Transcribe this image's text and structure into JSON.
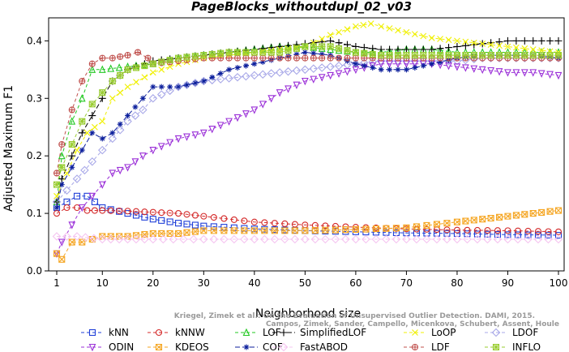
{
  "chart_data": {
    "type": "line",
    "title": "PageBlocks_withoutdupl_02_v03",
    "xlabel": "Neighborhood size",
    "ylabel": "Adjusted Maximum F1",
    "xlim": [
      1,
      100
    ],
    "ylim": [
      0,
      0.44
    ],
    "x_ticks": [
      1,
      10,
      20,
      30,
      40,
      50,
      60,
      70,
      80,
      90,
      100
    ],
    "y_ticks": [
      0.0,
      0.1,
      0.2,
      0.3,
      0.4
    ],
    "x_tick_labels": [
      "1",
      "10",
      "20",
      "30",
      "40",
      "50",
      "60",
      "70",
      "80",
      "90",
      "100"
    ],
    "y_tick_labels": [
      "0.0",
      "0.1",
      "0.2",
      "0.3",
      "0.4"
    ],
    "grid": false,
    "legend_position": "bottom",
    "watermark": [
      "Kriegel, Zimek et al.: On the Evaluation of Unsupervised Outlier Detection. DAMI, 2015.",
      "Campos, Zimek, Sander, Campello, Micenkova, Schubert, Assent, Houle"
    ],
    "series": [
      {
        "name": "kNN",
        "color": "#1f3fd8",
        "marker": "square",
        "dash": "4,3",
        "points": [
          [
            1,
            0.11
          ],
          [
            3,
            0.12
          ],
          [
            5,
            0.13
          ],
          [
            7,
            0.13
          ],
          [
            10,
            0.11
          ],
          [
            15,
            0.1
          ],
          [
            20,
            0.09
          ],
          [
            25,
            0.083
          ],
          [
            30,
            0.078
          ],
          [
            40,
            0.073
          ],
          [
            50,
            0.07
          ],
          [
            60,
            0.068
          ],
          [
            70,
            0.066
          ],
          [
            80,
            0.065
          ],
          [
            90,
            0.063
          ],
          [
            100,
            0.062
          ]
        ]
      },
      {
        "name": "kNNW",
        "color": "#d42a2a",
        "marker": "circle",
        "dash": "4,3",
        "points": [
          [
            1,
            0.1
          ],
          [
            3,
            0.11
          ],
          [
            5,
            0.11
          ],
          [
            7,
            0.105
          ],
          [
            10,
            0.105
          ],
          [
            15,
            0.104
          ],
          [
            20,
            0.102
          ],
          [
            25,
            0.1
          ],
          [
            30,
            0.095
          ],
          [
            40,
            0.085
          ],
          [
            50,
            0.08
          ],
          [
            60,
            0.076
          ],
          [
            70,
            0.073
          ],
          [
            80,
            0.071
          ],
          [
            90,
            0.07
          ],
          [
            100,
            0.068
          ]
        ]
      },
      {
        "name": "LOF",
        "color": "#22c822",
        "marker": "triangle-up",
        "dash": "4,3",
        "points": [
          [
            1,
            0.12
          ],
          [
            2,
            0.2
          ],
          [
            4,
            0.26
          ],
          [
            6,
            0.3
          ],
          [
            8,
            0.35
          ],
          [
            10,
            0.35
          ],
          [
            15,
            0.355
          ],
          [
            20,
            0.36
          ],
          [
            25,
            0.37
          ],
          [
            30,
            0.375
          ],
          [
            35,
            0.38
          ],
          [
            40,
            0.385
          ],
          [
            45,
            0.39
          ],
          [
            50,
            0.39
          ],
          [
            55,
            0.385
          ],
          [
            60,
            0.38
          ],
          [
            65,
            0.38
          ],
          [
            70,
            0.385
          ],
          [
            75,
            0.385
          ],
          [
            80,
            0.38
          ],
          [
            85,
            0.38
          ],
          [
            90,
            0.38
          ],
          [
            95,
            0.38
          ],
          [
            100,
            0.38
          ]
        ]
      },
      {
        "name": "SimplifiedLOF",
        "color": "#000000",
        "marker": "plus",
        "dash": "6,3",
        "points": [
          [
            1,
            0.12
          ],
          [
            2,
            0.16
          ],
          [
            4,
            0.2
          ],
          [
            6,
            0.24
          ],
          [
            8,
            0.27
          ],
          [
            10,
            0.3
          ],
          [
            12,
            0.33
          ],
          [
            15,
            0.35
          ],
          [
            20,
            0.365
          ],
          [
            25,
            0.37
          ],
          [
            30,
            0.375
          ],
          [
            35,
            0.38
          ],
          [
            40,
            0.385
          ],
          [
            45,
            0.39
          ],
          [
            50,
            0.395
          ],
          [
            55,
            0.4
          ],
          [
            60,
            0.39
          ],
          [
            65,
            0.385
          ],
          [
            70,
            0.385
          ],
          [
            75,
            0.385
          ],
          [
            80,
            0.39
          ],
          [
            85,
            0.395
          ],
          [
            90,
            0.4
          ],
          [
            95,
            0.4
          ],
          [
            100,
            0.4
          ]
        ]
      },
      {
        "name": "LoOP",
        "color": "#f0f000",
        "marker": "x",
        "dash": "4,3",
        "points": [
          [
            1,
            0.13
          ],
          [
            3,
            0.17
          ],
          [
            5,
            0.21
          ],
          [
            7,
            0.24
          ],
          [
            10,
            0.26
          ],
          [
            12,
            0.3
          ],
          [
            15,
            0.32
          ],
          [
            20,
            0.345
          ],
          [
            25,
            0.36
          ],
          [
            30,
            0.37
          ],
          [
            35,
            0.375
          ],
          [
            40,
            0.38
          ],
          [
            45,
            0.385
          ],
          [
            50,
            0.39
          ],
          [
            55,
            0.41
          ],
          [
            60,
            0.425
          ],
          [
            63,
            0.43
          ],
          [
            65,
            0.425
          ],
          [
            70,
            0.415
          ],
          [
            75,
            0.405
          ],
          [
            80,
            0.4
          ],
          [
            85,
            0.395
          ],
          [
            90,
            0.39
          ],
          [
            95,
            0.385
          ],
          [
            100,
            0.38
          ]
        ]
      },
      {
        "name": "LDOF",
        "color": "#a8a8e8",
        "marker": "diamond",
        "dash": "4,3",
        "points": [
          [
            1,
            0.12
          ],
          [
            3,
            0.14
          ],
          [
            5,
            0.16
          ],
          [
            8,
            0.19
          ],
          [
            10,
            0.21
          ],
          [
            12,
            0.23
          ],
          [
            15,
            0.26
          ],
          [
            18,
            0.28
          ],
          [
            20,
            0.3
          ],
          [
            25,
            0.32
          ],
          [
            30,
            0.33
          ],
          [
            35,
            0.335
          ],
          [
            40,
            0.34
          ],
          [
            45,
            0.345
          ],
          [
            50,
            0.35
          ],
          [
            55,
            0.355
          ],
          [
            60,
            0.36
          ],
          [
            65,
            0.365
          ],
          [
            70,
            0.365
          ],
          [
            75,
            0.365
          ],
          [
            80,
            0.365
          ],
          [
            85,
            0.37
          ],
          [
            90,
            0.37
          ],
          [
            95,
            0.37
          ],
          [
            100,
            0.37
          ]
        ]
      },
      {
        "name": "ODIN",
        "color": "#9b30d8",
        "marker": "triangle-down",
        "dash": "4,3",
        "points": [
          [
            1,
            0.03
          ],
          [
            2,
            0.05
          ],
          [
            4,
            0.08
          ],
          [
            6,
            0.11
          ],
          [
            8,
            0.13
          ],
          [
            10,
            0.15
          ],
          [
            12,
            0.17
          ],
          [
            15,
            0.18
          ],
          [
            18,
            0.2
          ],
          [
            20,
            0.21
          ],
          [
            25,
            0.23
          ],
          [
            30,
            0.24
          ],
          [
            35,
            0.26
          ],
          [
            40,
            0.28
          ],
          [
            45,
            0.31
          ],
          [
            50,
            0.33
          ],
          [
            55,
            0.34
          ],
          [
            60,
            0.35
          ],
          [
            65,
            0.36
          ],
          [
            70,
            0.36
          ],
          [
            75,
            0.36
          ],
          [
            80,
            0.355
          ],
          [
            85,
            0.35
          ],
          [
            90,
            0.345
          ],
          [
            95,
            0.345
          ],
          [
            100,
            0.34
          ]
        ]
      },
      {
        "name": "KDEOS",
        "color": "#f5a623",
        "marker": "square-x",
        "dash": "4,3",
        "points": [
          [
            1,
            0.03
          ],
          [
            2,
            0.02
          ],
          [
            4,
            0.05
          ],
          [
            6,
            0.05
          ],
          [
            8,
            0.055
          ],
          [
            10,
            0.06
          ],
          [
            15,
            0.06
          ],
          [
            20,
            0.065
          ],
          [
            25,
            0.065
          ],
          [
            30,
            0.07
          ],
          [
            40,
            0.07
          ],
          [
            50,
            0.07
          ],
          [
            60,
            0.072
          ],
          [
            70,
            0.075
          ],
          [
            80,
            0.085
          ],
          [
            85,
            0.09
          ],
          [
            90,
            0.095
          ],
          [
            95,
            0.1
          ],
          [
            100,
            0.105
          ]
        ]
      },
      {
        "name": "COF",
        "color": "#0c1f9c",
        "marker": "asterisk",
        "dash": "6,3",
        "points": [
          [
            1,
            0.11
          ],
          [
            2,
            0.15
          ],
          [
            4,
            0.18
          ],
          [
            6,
            0.21
          ],
          [
            8,
            0.24
          ],
          [
            10,
            0.23
          ],
          [
            12,
            0.24
          ],
          [
            15,
            0.27
          ],
          [
            18,
            0.3
          ],
          [
            20,
            0.32
          ],
          [
            25,
            0.32
          ],
          [
            30,
            0.33
          ],
          [
            35,
            0.35
          ],
          [
            40,
            0.36
          ],
          [
            45,
            0.37
          ],
          [
            50,
            0.38
          ],
          [
            55,
            0.375
          ],
          [
            60,
            0.36
          ],
          [
            65,
            0.35
          ],
          [
            70,
            0.35
          ],
          [
            75,
            0.36
          ],
          [
            80,
            0.37
          ],
          [
            85,
            0.375
          ],
          [
            90,
            0.375
          ],
          [
            95,
            0.375
          ],
          [
            100,
            0.37
          ]
        ]
      },
      {
        "name": "FastABOD",
        "color": "#f5c4f0",
        "marker": "diamond",
        "dash": "4,3",
        "points": [
          [
            1,
            0.06
          ],
          [
            5,
            0.06
          ],
          [
            10,
            0.055
          ],
          [
            15,
            0.055
          ],
          [
            20,
            0.055
          ],
          [
            30,
            0.055
          ],
          [
            40,
            0.055
          ],
          [
            50,
            0.055
          ],
          [
            60,
            0.055
          ],
          [
            70,
            0.055
          ],
          [
            80,
            0.055
          ],
          [
            90,
            0.055
          ],
          [
            100,
            0.055
          ]
        ]
      },
      {
        "name": "LDF",
        "color": "#c0504d",
        "marker": "circle-plus",
        "dash": "4,3",
        "points": [
          [
            1,
            0.17
          ],
          [
            2,
            0.22
          ],
          [
            4,
            0.28
          ],
          [
            6,
            0.33
          ],
          [
            8,
            0.36
          ],
          [
            10,
            0.37
          ],
          [
            12,
            0.37
          ],
          [
            15,
            0.375
          ],
          [
            17,
            0.38
          ],
          [
            19,
            0.37
          ],
          [
            20,
            0.36
          ],
          [
            25,
            0.365
          ],
          [
            30,
            0.37
          ],
          [
            35,
            0.37
          ],
          [
            40,
            0.37
          ],
          [
            45,
            0.37
          ],
          [
            50,
            0.37
          ],
          [
            55,
            0.37
          ],
          [
            60,
            0.37
          ],
          [
            65,
            0.37
          ],
          [
            70,
            0.37
          ],
          [
            75,
            0.37
          ],
          [
            80,
            0.37
          ],
          [
            85,
            0.37
          ],
          [
            90,
            0.37
          ],
          [
            95,
            0.37
          ],
          [
            100,
            0.37
          ]
        ]
      },
      {
        "name": "INFLO",
        "color": "#9acd32",
        "marker": "square-star",
        "dash": "4,3",
        "points": [
          [
            1,
            0.15
          ],
          [
            2,
            0.18
          ],
          [
            4,
            0.22
          ],
          [
            6,
            0.26
          ],
          [
            8,
            0.29
          ],
          [
            10,
            0.31
          ],
          [
            12,
            0.33
          ],
          [
            15,
            0.35
          ],
          [
            20,
            0.36
          ],
          [
            25,
            0.37
          ],
          [
            30,
            0.375
          ],
          [
            35,
            0.38
          ],
          [
            40,
            0.38
          ],
          [
            45,
            0.38
          ],
          [
            50,
            0.39
          ],
          [
            55,
            0.39
          ],
          [
            60,
            0.38
          ],
          [
            65,
            0.375
          ],
          [
            70,
            0.375
          ],
          [
            75,
            0.375
          ],
          [
            80,
            0.375
          ],
          [
            85,
            0.375
          ],
          [
            90,
            0.375
          ],
          [
            95,
            0.375
          ],
          [
            100,
            0.375
          ]
        ]
      }
    ]
  }
}
